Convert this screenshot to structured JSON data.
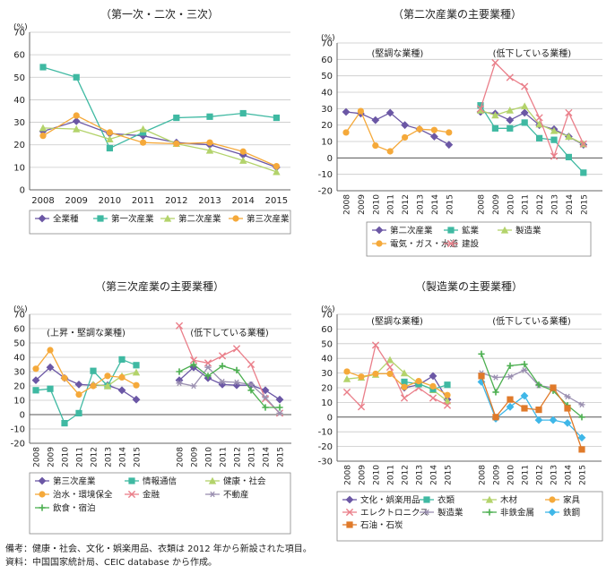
{
  "notes": [
    "備考：健康・社会、文化・娯楽用品、衣類は 2012 年から新設された項目。",
    "資料：中国国家統計局、CEIC database から作成。"
  ],
  "colors": {
    "purple": "#6b57a5",
    "teal": "#3fb9a2",
    "lightgreen": "#b3d36b",
    "orange": "#f5a93a",
    "pink": "#ea7f8a",
    "grey": "#9a8fb0",
    "blue": "#3fb7e8",
    "green": "#4caf50",
    "darkorange": "#e07a2a"
  },
  "chart_data": [
    {
      "type": "line",
      "title": "（第一次・二次・三次）",
      "unit": "(%)",
      "ylim": [
        0,
        70
      ],
      "yticks": [
        0,
        10,
        20,
        30,
        40,
        50,
        60,
        70
      ],
      "x": [
        "2008",
        "2009",
        "2010",
        "2011",
        "2012",
        "2013",
        "2014",
        "2015"
      ],
      "groups": [],
      "series": [
        {
          "name": "全業種",
          "color": "#6b57a5",
          "marker": "diamond",
          "group": 0,
          "values": [
            26,
            30.5,
            25,
            24,
            21,
            20,
            15.5,
            10
          ]
        },
        {
          "name": "第一次産業",
          "color": "#3fb9a2",
          "marker": "square",
          "group": 0,
          "values": [
            54.5,
            50,
            18.5,
            25.5,
            32,
            32.5,
            34,
            32
          ]
        },
        {
          "name": "第二次産業",
          "color": "#b3d36b",
          "marker": "triangle",
          "group": 0,
          "values": [
            27.5,
            27,
            22.5,
            27,
            20.5,
            17.5,
            13,
            8
          ]
        },
        {
          "name": "第三次産業",
          "color": "#f5a93a",
          "marker": "circle",
          "group": 0,
          "values": [
            24,
            33,
            25.5,
            21,
            20.5,
            21,
            17,
            10.5
          ]
        }
      ]
    },
    {
      "type": "line",
      "title": "（第二次産業の主要業種）",
      "unit": "(%)",
      "ylim": [
        -20,
        70
      ],
      "yticks": [
        -20,
        -10,
        0,
        10,
        20,
        30,
        40,
        50,
        60,
        70
      ],
      "x": [
        "2008",
        "2009",
        "2010",
        "2011",
        "2012",
        "2013",
        "2014",
        "2015"
      ],
      "groups": [
        "(堅調な業種)",
        "(低下している業種)"
      ],
      "series": [
        {
          "name": "第二次産業",
          "color": "#6b57a5",
          "marker": "diamond",
          "group": 0,
          "values": [
            28,
            27,
            23,
            27.5,
            20,
            17.5,
            13,
            8
          ]
        },
        {
          "name": "電気・ガス・水道",
          "color": "#f5a93a",
          "marker": "circle",
          "group": 0,
          "values": [
            15.5,
            28.5,
            7.5,
            4,
            12.5,
            17.5,
            17,
            15.5
          ]
        },
        {
          "name": "第二次産業",
          "color": "#6b57a5",
          "marker": "diamond",
          "group": 1,
          "values": [
            28,
            27,
            23,
            27.5,
            20,
            17.5,
            13,
            8
          ]
        },
        {
          "name": "鉱業",
          "color": "#3fb9a2",
          "marker": "square",
          "group": 1,
          "values": [
            32,
            18,
            18,
            21.5,
            12,
            11,
            0.5,
            -9
          ]
        },
        {
          "name": "製造業",
          "color": "#b3d36b",
          "marker": "triangle",
          "group": 1,
          "values": [
            29,
            26,
            29,
            31.5,
            20.5,
            16.5,
            13,
            8.5
          ]
        },
        {
          "name": "建設",
          "color": "#ea7f8a",
          "marker": "x",
          "group": 1,
          "values": [
            30,
            58,
            49,
            43.5,
            24.5,
            1,
            27.5,
            8.5
          ]
        }
      ]
    },
    {
      "type": "line",
      "title": "（第三次産業の主要業種）",
      "unit": "(%)",
      "ylim": [
        -20,
        70
      ],
      "yticks": [
        -20,
        -10,
        0,
        10,
        20,
        30,
        40,
        50,
        60,
        70
      ],
      "x": [
        "2008",
        "2009",
        "2010",
        "2011",
        "2012",
        "2013",
        "2014",
        "2015"
      ],
      "groups": [
        "(上昇・堅調な業種)",
        "(低下している業種)"
      ],
      "series": [
        {
          "name": "第三次産業",
          "color": "#6b57a5",
          "marker": "diamond",
          "group": 0,
          "values": [
            24,
            33,
            25.5,
            21,
            20.5,
            20.5,
            17,
            10.5
          ]
        },
        {
          "name": "情報通信",
          "color": "#3fb9a2",
          "marker": "square",
          "group": 0,
          "values": [
            17,
            18,
            -6,
            1,
            30.5,
            20,
            38.5,
            34.5
          ]
        },
        {
          "name": "健康・社会",
          "color": "#b3d36b",
          "marker": "triangle",
          "group": 0,
          "values": [
            null,
            null,
            null,
            null,
            21,
            20,
            27,
            29.5
          ]
        },
        {
          "name": "治水・環境保全",
          "color": "#f5a93a",
          "marker": "circle",
          "group": 0,
          "values": [
            32,
            45,
            25.5,
            14,
            20,
            27,
            26,
            20.5
          ]
        },
        {
          "name": "第三次産業",
          "color": "#6b57a5",
          "marker": "diamond",
          "group": 1,
          "values": [
            24,
            33,
            25.5,
            21,
            20.5,
            20.5,
            17,
            10.5
          ]
        },
        {
          "name": "金融",
          "color": "#ea7f8a",
          "marker": "x",
          "group": 1,
          "values": [
            62,
            38,
            36,
            41,
            46,
            35,
            11,
            1
          ]
        },
        {
          "name": "不動産",
          "color": "#9a8fb0",
          "marker": "asterisk",
          "group": 1,
          "values": [
            22,
            20,
            33,
            23,
            22.5,
            21,
            12,
            1
          ]
        },
        {
          "name": "飲食・宿泊",
          "color": "#4caf50",
          "marker": "plus",
          "group": 1,
          "values": [
            30,
            35,
            27,
            34,
            31,
            17,
            5,
            5
          ]
        }
      ]
    },
    {
      "type": "line",
      "title": "（製造業の主要業種）",
      "unit": "(%)",
      "ylim": [
        -30,
        70
      ],
      "yticks": [
        -30,
        -20,
        -10,
        0,
        10,
        20,
        30,
        40,
        50,
        60,
        70
      ],
      "x": [
        "2008",
        "2009",
        "2010",
        "2011",
        "2012",
        "2013",
        "2014",
        "2015"
      ],
      "groups": [
        "(堅調な業種)",
        "(低下している業種)"
      ],
      "series": [
        {
          "name": "文化・娯楽用品",
          "color": "#6b57a5",
          "marker": "diamond",
          "group": 0,
          "values": [
            null,
            null,
            null,
            null,
            20,
            22,
            28,
            12
          ]
        },
        {
          "name": "木材",
          "color": "#b3d36b",
          "marker": "triangle",
          "group": 0,
          "values": [
            26,
            27,
            29,
            39,
            30,
            23,
            18.5,
            11
          ]
        },
        {
          "name": "エレクトロニクス",
          "color": "#ea7f8a",
          "marker": "x",
          "group": 0,
          "values": [
            17,
            7,
            49,
            34,
            13,
            20,
            13,
            8
          ]
        },
        {
          "name": "衣類",
          "color": "#3fb9a2",
          "marker": "square",
          "group": 0,
          "values": [
            null,
            null,
            null,
            null,
            24,
            22.5,
            19,
            22
          ]
        },
        {
          "name": "家具",
          "color": "#f5a93a",
          "marker": "circle",
          "group": 0,
          "values": [
            31,
            27.5,
            29.5,
            29.5,
            20.5,
            24.5,
            21,
            15
          ]
        },
        {
          "name": "製造業",
          "color": "#9a8fb0",
          "marker": "asterisk",
          "group": 1,
          "values": [
            30,
            27,
            27.5,
            32,
            21.5,
            20,
            14,
            8.5
          ]
        },
        {
          "name": "非鉄金属",
          "color": "#4caf50",
          "marker": "plus",
          "group": 1,
          "values": [
            43,
            17,
            35,
            36,
            22,
            18,
            8,
            0
          ]
        },
        {
          "name": "鉄鋼",
          "color": "#3fb7e8",
          "marker": "diamond",
          "group": 1,
          "values": [
            24,
            -1,
            7,
            14.5,
            -2,
            -2,
            -4,
            -14
          ]
        },
        {
          "name": "石油・石炭",
          "color": "#e07a2a",
          "marker": "square",
          "group": 1,
          "values": [
            28,
            0,
            12,
            6,
            5,
            20,
            6,
            -22
          ]
        }
      ]
    }
  ],
  "legends": [
    [
      "全業種",
      "第一次産業",
      "第二次産業",
      "第三次産業"
    ],
    [
      "第二次産業",
      "鉱業",
      "製造業",
      "電気・ガス・水道",
      "建設"
    ],
    [
      "第三次産業",
      "情報通信",
      "健康・社会",
      "治水・環境保全",
      "金融",
      "不動産",
      "飲食・宿泊"
    ],
    [
      "文化・娯楽用品",
      "衣類",
      "木材",
      "家具",
      "エレクトロニクス",
      "製造業",
      "非鉄金属",
      "鉄鋼",
      "石油・石炭"
    ]
  ]
}
